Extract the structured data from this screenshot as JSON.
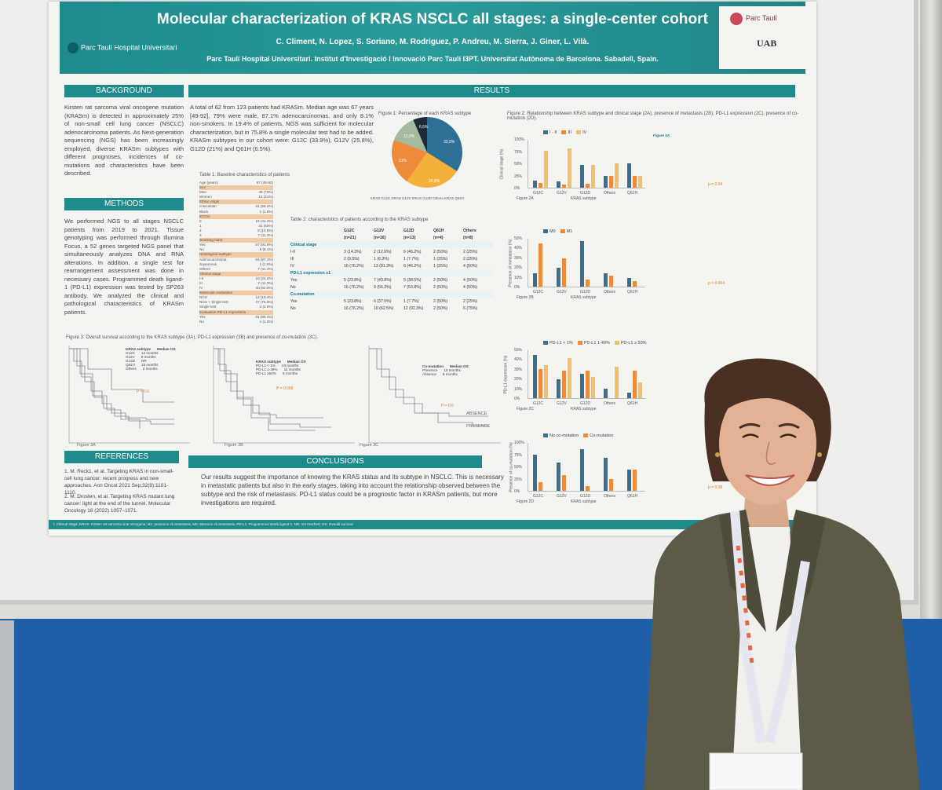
{
  "poster": {
    "title": "Molecular characterization of KRAS NSCLC all stages: a single-center cohort",
    "authors": "C. Climent, N. Lopez, S. Soriano, M. Rodriguez, P. Andreu, M. Sierra, J. Giner, L. Vilà.",
    "affiliation": "Parc Taulí Hospital Universitari. Institut d'Investigació I Innovació Parc Taulí I3PT. Universitat Autònoma de Barcelona. Sabadell, Spain.",
    "logo_left": "Parc Taulí Hospital Universitari",
    "logo_right_name": "Parc Taulí",
    "logo_right_uab": "UAB"
  },
  "sections": {
    "background": "BACKGROUND",
    "methods": "METHODS",
    "results": "RESULTS",
    "references": "REFERENCES",
    "conclusions": "CONCLUSIONS"
  },
  "background_text": "Kirsten rat sarcoma viral oncogene mutation (KRASm) is detected in approximately 25% of non-small cell lung cancer (NSCLC) adenocarcinoma patients. As Next-generation sequencing (NGS) has been increasingly employed, diverse KRASm subtypes with different prognoses, incidences of co-mutations and characteristics have been described.",
  "methods_text": "We performed NGS to all stages NSCLC patients from 2019 to 2021. Tissue genotyping was performed through Illumina Focus, a 52 genes targeted NGS panel that simultaneously analyzes DNA and RNA alterations. In addition, a single test for rearrangement assessment was done in necessary cases. Programmed death ligand-1 (PD-L1) expression was tested by SP263 antibody. We analyzed the clinical and pathological characteristics of KRASm patients.",
  "results_text": "A total of 62 from 123 patients had KRASm. Median age was 67 years [49-92], 79% were male, 87.1% adenocarcinomas, and only 8.1% non-smokers. In 19.4% of patients, NGS was sufficient for molecular characterization, but in 75.8% a single molecular test had to be added. KRASm subtypes in our cohort were: G12C (33.9%), G12V (25.8%), G12D (21%) and Q61H (6.5%).",
  "references": [
    "1. M. Reck1, et al. Targeting KRAS in non-small-cell lung cancer: recent progress and new approaches. Ann Oncol 2021 Sep;32(9):1101-1110.",
    "2. M. Drosten, et al. Targeting KRAS mutant lung cancer: light at the end of the tunnel. Molecular Oncology 16 (2022) 1057–1071."
  ],
  "conclusions_text": "Our results suggest the importance of knowing the KRAS status and its subtype in NSCLC. This is necessary in metastatic patients but also in the early stages, taking into account the relationship observed between the subtype and the risk of metastasis. PD-L1 status could be a prognostic factor in KRASm patients, but more investigations are required.",
  "footer": "I: Clinical stage; KRAS: Kirsten rat sarcoma viral oncogene; M1: presence of metastasis; M0: absence of metastasis; PD-L1: Programmed death ligand 1; NR: not reached; OS: Overall survival",
  "figure1": {
    "caption": "Figure 1: Percentage of each KRAS subtype",
    "labels": [
      "33,9%",
      "25,8%",
      "21%",
      "12,9%",
      "6,5%"
    ],
    "legend": "KRAS G12C   KRAS G12V   KRAS G12D   Others   KRAS Q61H",
    "colors": [
      "#2d6f95",
      "#f3b13c",
      "#f08a3b",
      "#a5b9a1",
      "#1e2a38"
    ]
  },
  "table1": {
    "caption": "Table 1: Baseline characteristics of patients",
    "rows": [
      [
        "Age (years)",
        "67 (49-92)"
      ],
      [
        "Sex",
        ""
      ],
      [
        "Men",
        "49 (79%)"
      ],
      [
        "Women",
        "13 (21%)"
      ],
      [
        "Ethnic origin",
        ""
      ],
      [
        "Caucasian",
        "61 (98.4%)"
      ],
      [
        "Black",
        "1 (1.6%)"
      ],
      [
        "ECOG",
        ""
      ],
      [
        "0",
        "15 (24.2%)"
      ],
      [
        "1",
        "31 (50%)"
      ],
      [
        "2",
        "9 (14.5%)"
      ],
      [
        "3",
        "7 (11.3%)"
      ],
      [
        "Smoking habit",
        ""
      ],
      [
        "Yes",
        "57 (91.9%)"
      ],
      [
        "No",
        "5 (8.1%)"
      ],
      [
        "Histological subtype",
        ""
      ],
      [
        "Adenocarcinoma",
        "54 (87.1%)"
      ],
      [
        "Squamous",
        "1 (1.6%)"
      ],
      [
        "Others",
        "7 (11.3%)"
      ],
      [
        "Clinical stage",
        ""
      ],
      [
        "I-II",
        "15 (24.2%)"
      ],
      [
        "III",
        "7 (11.3%)"
      ],
      [
        "IV",
        "40 (64.5%)"
      ],
      [
        "Molecular evaluation",
        ""
      ],
      [
        "NGS",
        "12 (19.4%)"
      ],
      [
        "NGS + Single test",
        "47 (75.8%)"
      ],
      [
        "Single test",
        "3 (4.8%)"
      ],
      [
        "Evaluation PD-L1 expression",
        ""
      ],
      [
        "Yes",
        "61 (98.4%)"
      ],
      [
        "No",
        "1 (1.6%)"
      ]
    ]
  },
  "table2": {
    "caption": "Table 2: characteristics of patients according to the KRAS subtype",
    "header": [
      "",
      "G12C",
      "G12V",
      "G12D",
      "Q61H",
      "Others"
    ],
    "subheader": [
      "",
      "(n=21)",
      "(n=16)",
      "(n=13)",
      "(n=4)",
      "(n=8)"
    ],
    "rows": [
      [
        "Clinical stage",
        "",
        "",
        "",
        "",
        ""
      ],
      [
        "I-II",
        "3 (14.3%)",
        "2 (12.6%)",
        "6 (46.2%)",
        "2 (50%)",
        "2 (25%)"
      ],
      [
        "III",
        "2 (9.5%)",
        "1 (6.3%)",
        "1 (7.7%)",
        "1 (25%)",
        "2 (25%)"
      ],
      [
        "IV",
        "16 (76.2%)",
        "13 (81.3%)",
        "6 (46.2%)",
        "1 (25%)",
        "4 (50%)"
      ],
      [
        "PD-L1 expression ≥1",
        "",
        "",
        "",
        "",
        ""
      ],
      [
        "Yes",
        "5 (23.8%)",
        "7 (43.8%)",
        "5 (38.5%)",
        "2 (50%)",
        "4 (50%)"
      ],
      [
        "No",
        "16 (76.2%)",
        "9 (56.3%)",
        "7 (53.8%)",
        "2 (50%)",
        "4 (50%)"
      ],
      [
        "Co-mutation",
        "",
        "",
        "",
        "",
        ""
      ],
      [
        "Yes",
        "5 (23.8%)",
        "6 (37.5%)",
        "1 (7.7%)",
        "2 (50%)",
        "2 (25%)"
      ],
      [
        "No",
        "16 (76.2%)",
        "10 (62.5%)",
        "12 (92.3%)",
        "2 (50%)",
        "6 (75%)"
      ]
    ]
  },
  "figure2": {
    "caption": "Figure 2: Relationship between KRAS subtype and clinical stage (2A), presence of metastasis (2B), PD-L1 expression (2C), presence of co-mutation (2D).",
    "xlabel": "KRAS subtype",
    "categories": [
      "G12C",
      "G12V",
      "G12D",
      "Others",
      "Q61H"
    ],
    "panels": [
      {
        "label": "Figure 2A",
        "ylabel": "Clinical stage (%)",
        "pvalue": "p = 0.04",
        "series": [
          {
            "name": "I - II",
            "color": "#3a6f8f",
            "values": [
              14,
              13,
              46,
              25,
              50
            ]
          },
          {
            "name": "III",
            "color": "#f08a3b",
            "values": [
              10,
              6,
              8,
              25,
              25
            ]
          },
          {
            "name": "IV",
            "color": "#f3c06a",
            "values": [
              76,
              81,
              46,
              50,
              25
            ]
          }
        ],
        "ylim": [
          0,
          100
        ],
        "yticks": [
          "0%",
          "25%",
          "50%",
          "75%",
          "100%"
        ]
      },
      {
        "label": "Figure 2B",
        "ylabel": "Presence of metastasis (%)",
        "pvalue": "p = 0.004",
        "series": [
          {
            "name": "M0",
            "color": "#3a6f8f",
            "values": [
              14,
              19,
              47,
              14,
              9
            ]
          },
          {
            "name": "M1",
            "color": "#f08a3b",
            "values": [
              44,
              29,
              7,
              11,
              6
            ]
          }
        ],
        "ylim": [
          0,
          50
        ],
        "yticks": [
          "0%",
          "10%",
          "20%",
          "30%",
          "40%",
          "50%"
        ]
      },
      {
        "label": "Figure 2C",
        "ylabel": "PD-L1 expression (%)",
        "pvalue": "",
        "series": [
          {
            "name": "PD-L1 < 1%",
            "color": "#3a6f8f",
            "values": [
              44,
              19,
              25,
              10,
              6
            ]
          },
          {
            "name": "PD-L1 1-49%",
            "color": "#f08a3b",
            "values": [
              30,
              28,
              28,
              0,
              28
            ]
          },
          {
            "name": "PD-L1 ≥ 50%",
            "color": "#f3c06a",
            "values": [
              34,
              41,
              22,
              32,
              16
            ]
          }
        ],
        "ylim": [
          0,
          50
        ],
        "yticks": [
          "0%",
          "10%",
          "20%",
          "30%",
          "40%",
          "50%"
        ]
      },
      {
        "label": "Figure 2D",
        "ylabel": "Presence of co-mutation (%)",
        "pvalue": "p = 0.08",
        "series": [
          {
            "name": "No co-mutation",
            "color": "#3a6f8f",
            "values": [
              75,
              58,
              85,
              68,
              44
            ]
          },
          {
            "name": "Co-mutation",
            "color": "#f08a3b",
            "values": [
              18,
              33,
              10,
              25,
              44
            ]
          }
        ],
        "ylim": [
          0,
          100
        ],
        "yticks": [
          "0%",
          "25%",
          "50%",
          "75%",
          "100%"
        ]
      }
    ]
  },
  "figure3": {
    "caption": "Figure 3: Overall survival according to the KRAS subtype (3A), PD-L1 expression (3B) and presence of co-mutation (3C).",
    "labels": [
      "Figure 3A",
      "Figure 3B",
      "Figure 3C"
    ],
    "pvalues": [
      "P = 0.6",
      "P = 0.068",
      "P = 0.6"
    ],
    "table_a": [
      [
        "KRAS subtype",
        "Median OS"
      ],
      [
        "G12C",
        "12 months"
      ],
      [
        "G12V",
        "6 months"
      ],
      [
        "G12D",
        "NR"
      ],
      [
        "Q61H",
        "15 months"
      ],
      [
        "Others",
        "2 months"
      ]
    ],
    "table_b": [
      [
        "KRAS subtype",
        "Median OS"
      ],
      [
        "PD-L1 < 1%",
        "23 months"
      ],
      [
        "PD-L1 1-49%",
        "11 months"
      ],
      [
        "PD-L1 ≥50%",
        "6 months"
      ]
    ],
    "table_c": [
      [
        "Co-mutation",
        "Median OS"
      ],
      [
        "Presence",
        "15 months"
      ],
      [
        "Absence",
        "8 months"
      ]
    ],
    "legend_c": [
      "ABSENCE",
      "PRESENCE"
    ]
  }
}
